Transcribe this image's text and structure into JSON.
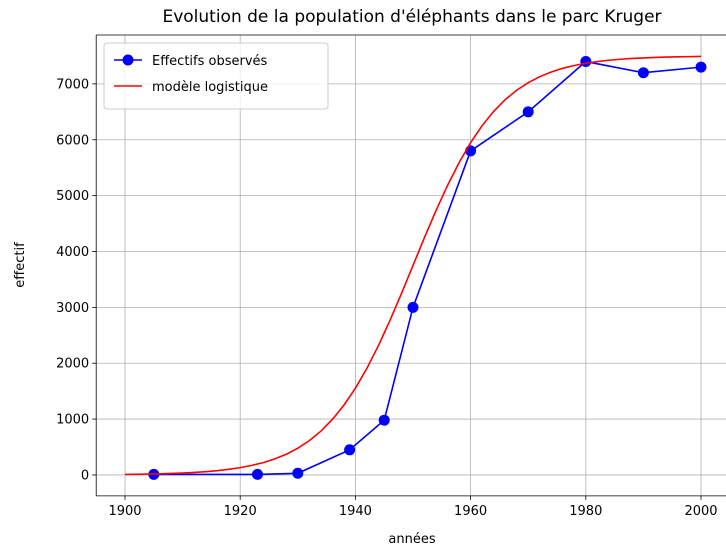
{
  "chart_data": {
    "type": "line",
    "title": "Evolution de la population d'éléphants dans le parc Kruger",
    "xlabel": "années",
    "ylabel": "effectif",
    "xlim": [
      1895,
      2005
    ],
    "ylim": [
      -375,
      7875
    ],
    "xticks": [
      1900,
      1920,
      1940,
      1960,
      1980,
      2000
    ],
    "yticks": [
      0,
      1000,
      2000,
      3000,
      4000,
      5000,
      6000,
      7000
    ],
    "grid": true,
    "legend": "upper left",
    "series": [
      {
        "name": "Effectifs observés",
        "color": "#0000ff",
        "marker": "o",
        "x": [
          1905,
          1923,
          1930,
          1939,
          1945,
          1950,
          1960,
          1970,
          1980,
          1990,
          2000
        ],
        "values": [
          10,
          10,
          30,
          450,
          980,
          3000,
          5800,
          6500,
          7400,
          7200,
          7300
        ]
      },
      {
        "name": "modèle logistique",
        "color": "#ff0000",
        "x": [
          1900,
          1902,
          1904,
          1906,
          1908,
          1910,
          1912,
          1914,
          1916,
          1918,
          1920,
          1922,
          1924,
          1926,
          1928,
          1930,
          1932,
          1934,
          1936,
          1938,
          1940,
          1942,
          1944,
          1946,
          1948,
          1950,
          1952,
          1954,
          1956,
          1958,
          1960,
          1962,
          1964,
          1966,
          1968,
          1970,
          1972,
          1974,
          1976,
          1978,
          1980,
          1982,
          1984,
          1986,
          1988,
          1990,
          1992,
          1994,
          1996,
          1998,
          2000
        ],
        "values": [
          9,
          12,
          16,
          20,
          27,
          35,
          45,
          59,
          77,
          101,
          131,
          171,
          221,
          288,
          371,
          479,
          614,
          783,
          993,
          1248,
          1553,
          1909,
          2316,
          2766,
          3249,
          3750,
          4251,
          4734,
          5184,
          5591,
          5947,
          6252,
          6507,
          6717,
          6886,
          7021,
          7129,
          7212,
          7279,
          7329,
          7369,
          7399,
          7423,
          7441,
          7455,
          7465,
          7473,
          7480,
          7484,
          7488,
          7491
        ]
      }
    ]
  }
}
